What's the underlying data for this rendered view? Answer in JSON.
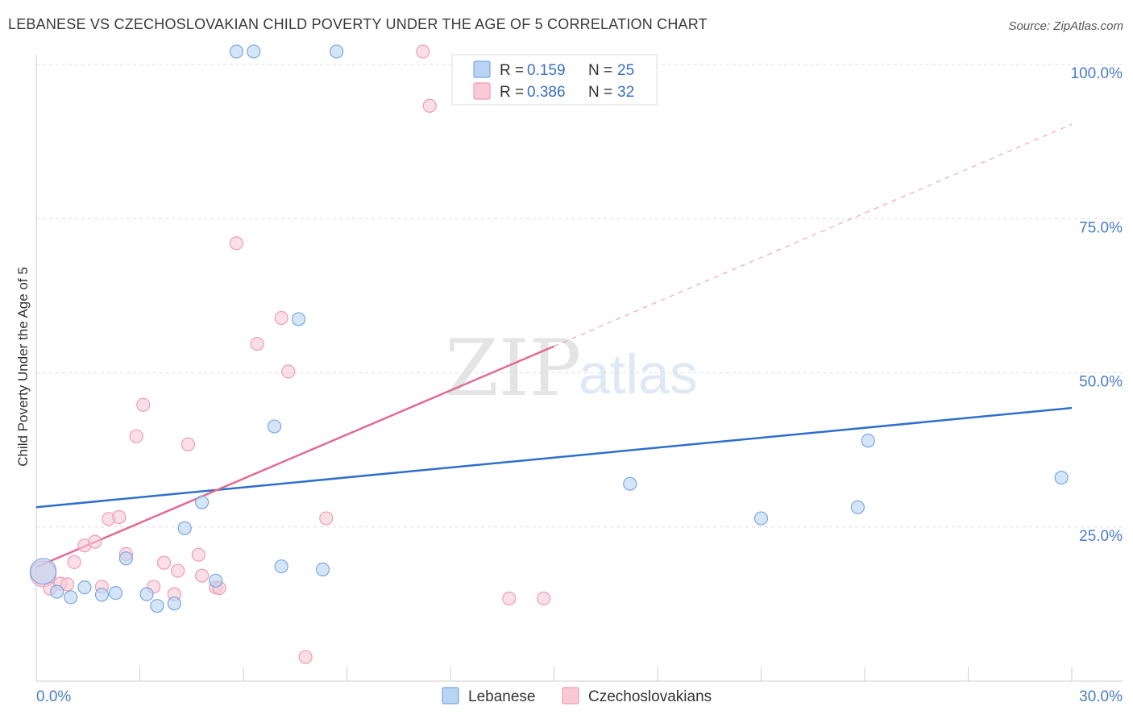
{
  "title": "LEBANESE VS CZECHOSLOVAKIAN CHILD POVERTY UNDER THE AGE OF 5 CORRELATION CHART",
  "source": "Source: ZipAtlas.com",
  "watermark": {
    "zip": "ZIP",
    "atlas": "atlas"
  },
  "colors": {
    "lebanese_fill": "#b9d3f3",
    "lebanese_stroke": "#7aa6e0",
    "lebanese_line": "#2e6fcc",
    "czech_fill": "#f9c9d6",
    "czech_stroke": "#ef9bb4",
    "czech_line": "#e26b93",
    "accent_text": "#3a6fc4"
  },
  "legend": {
    "rows": [
      {
        "r_label": "R =",
        "r_value": "0.159",
        "n_label": "N =",
        "n_value": "25"
      },
      {
        "r_label": "R =",
        "r_value": "0.386",
        "n_label": "N =",
        "n_value": "32"
      }
    ]
  },
  "chart_data": {
    "type": "scatter",
    "title": "LEBANESE VS CZECHOSLOVAKIAN CHILD POVERTY UNDER THE AGE OF 5 CORRELATION CHART",
    "xlabel": "",
    "ylabel": "Child Poverty Under the Age of 5",
    "xlim": [
      0,
      30
    ],
    "ylim": [
      0,
      100
    ],
    "x_tick_labels": [
      "0.0%",
      "30.0%"
    ],
    "y_tick_labels": [
      "25.0%",
      "50.0%",
      "75.0%",
      "100.0%"
    ],
    "y_ticks": [
      25,
      50,
      75,
      100
    ],
    "grid": true,
    "legend_position": "bottom-center",
    "series": [
      {
        "name": "Lebanese",
        "r": 0.159,
        "n": 25,
        "trend": {
          "x0": 0,
          "y0": 28.2,
          "x1": 30,
          "y1": 44.3
        },
        "points": [
          {
            "x": 0.2,
            "y": 17.8,
            "big": true
          },
          {
            "x": 0.6,
            "y": 14.5
          },
          {
            "x": 1.0,
            "y": 13.6
          },
          {
            "x": 1.4,
            "y": 15.2
          },
          {
            "x": 1.9,
            "y": 14.0
          },
          {
            "x": 2.3,
            "y": 14.3
          },
          {
            "x": 2.6,
            "y": 19.9
          },
          {
            "x": 3.2,
            "y": 14.1
          },
          {
            "x": 3.5,
            "y": 12.2
          },
          {
            "x": 4.0,
            "y": 12.6
          },
          {
            "x": 4.3,
            "y": 24.8
          },
          {
            "x": 4.8,
            "y": 29.0
          },
          {
            "x": 5.2,
            "y": 16.3
          },
          {
            "x": 5.8,
            "y": 102.1
          },
          {
            "x": 6.3,
            "y": 102.1
          },
          {
            "x": 6.9,
            "y": 41.3
          },
          {
            "x": 7.1,
            "y": 18.6
          },
          {
            "x": 7.6,
            "y": 58.7
          },
          {
            "x": 8.3,
            "y": 18.1
          },
          {
            "x": 8.7,
            "y": 102.1
          },
          {
            "x": 17.2,
            "y": 32.0
          },
          {
            "x": 21.0,
            "y": 26.4
          },
          {
            "x": 23.8,
            "y": 28.2
          },
          {
            "x": 24.1,
            "y": 39.0
          },
          {
            "x": 29.7,
            "y": 33.0
          }
        ]
      },
      {
        "name": "Czechoslovakians",
        "r": 0.386,
        "n": 32,
        "trend": {
          "x0": 0,
          "y0": 18.5,
          "x1": 15.0,
          "y1": 54.3,
          "dash_x1": 30,
          "dash_y1": 90.3
        },
        "points": [
          {
            "x": 0.2,
            "y": 17.4,
            "big": true
          },
          {
            "x": 0.4,
            "y": 15.0
          },
          {
            "x": 0.7,
            "y": 15.8
          },
          {
            "x": 0.9,
            "y": 15.7
          },
          {
            "x": 1.1,
            "y": 19.3
          },
          {
            "x": 1.4,
            "y": 22.0
          },
          {
            "x": 1.7,
            "y": 22.6
          },
          {
            "x": 1.9,
            "y": 15.3
          },
          {
            "x": 2.1,
            "y": 26.3
          },
          {
            "x": 2.4,
            "y": 26.6
          },
          {
            "x": 2.6,
            "y": 20.6
          },
          {
            "x": 2.9,
            "y": 39.7
          },
          {
            "x": 3.1,
            "y": 44.8
          },
          {
            "x": 3.4,
            "y": 15.3
          },
          {
            "x": 3.7,
            "y": 19.2
          },
          {
            "x": 4.0,
            "y": 14.1
          },
          {
            "x": 4.1,
            "y": 17.9
          },
          {
            "x": 4.4,
            "y": 38.4
          },
          {
            "x": 4.7,
            "y": 20.5
          },
          {
            "x": 4.8,
            "y": 17.1
          },
          {
            "x": 5.2,
            "y": 15.2
          },
          {
            "x": 5.3,
            "y": 15.1
          },
          {
            "x": 5.8,
            "y": 71.0
          },
          {
            "x": 6.4,
            "y": 54.7
          },
          {
            "x": 7.1,
            "y": 58.9
          },
          {
            "x": 7.3,
            "y": 50.2
          },
          {
            "x": 7.8,
            "y": 3.9
          },
          {
            "x": 8.4,
            "y": 26.4
          },
          {
            "x": 11.2,
            "y": 102.1
          },
          {
            "x": 11.4,
            "y": 93.3
          },
          {
            "x": 13.7,
            "y": 13.4
          },
          {
            "x": 14.7,
            "y": 13.4
          }
        ]
      }
    ]
  }
}
